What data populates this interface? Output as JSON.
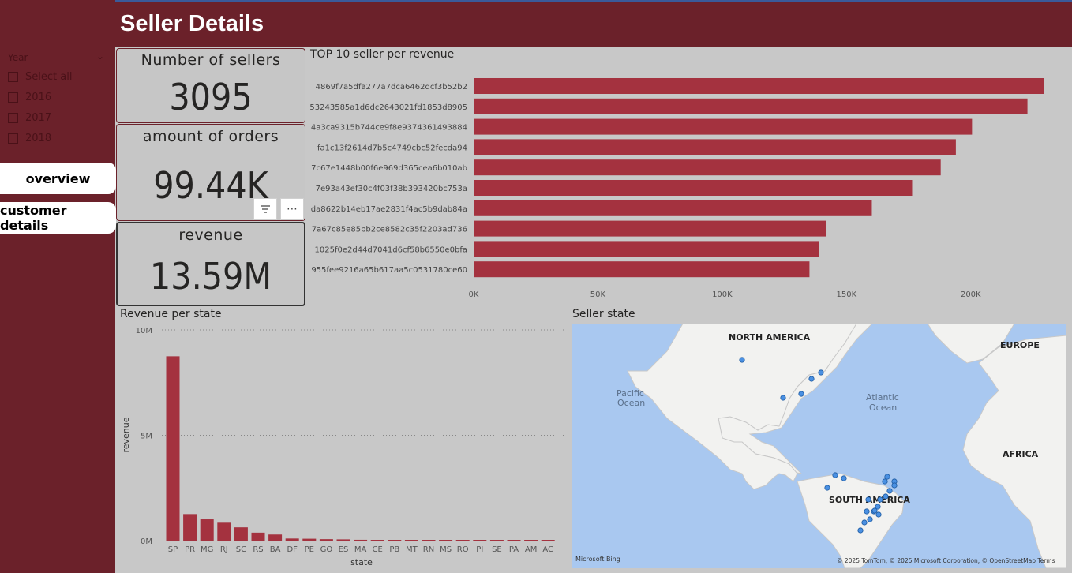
{
  "header": {
    "title": "Seller Details"
  },
  "slicer": {
    "title": "Year",
    "items": [
      "Select all",
      "2016",
      "2017",
      "2018"
    ]
  },
  "nav": {
    "overview": "overview",
    "customer_details": "customer details"
  },
  "cards": {
    "sellers": {
      "label": "Number of sellers",
      "value": "3095"
    },
    "orders": {
      "label": "amount of orders",
      "value": "99.44K"
    },
    "revenue": {
      "label": "revenue",
      "value": "13.59M"
    }
  },
  "visual_header_icons": [
    "filter-icon",
    "more-options-icon"
  ],
  "colors": {
    "accent": "#6b212a",
    "bar": "#a4323f",
    "canvas": "#c8c8c8",
    "map_dot": "#4a90e2"
  },
  "top_sellers_title": "TOP 10 seller per revenue",
  "state_chart_title": "Revenue per state",
  "map": {
    "title": "Seller state",
    "labels": {
      "north_america": "NORTH AMERICA",
      "south_america": "SOUTH AMERICA",
      "europe": "EUROPE",
      "africa": "AFRICA",
      "pacific": "Pacific",
      "pacific2": "Ocean",
      "atlantic": "Atlantic",
      "atlantic2": "Ocean"
    },
    "attribution": "© 2025 TomTom, © 2025 Microsoft Corporation, © OpenStreetMap  Terms",
    "bing": "Microsoft Bing"
  },
  "chart_data": [
    {
      "type": "bar",
      "orientation": "horizontal",
      "title": "TOP 10 seller per revenue",
      "categories": [
        "4869f7a5dfa277a7dca6462dcf3b52b2",
        "53243585a1d6dc2643021fd1853d8905",
        "4a3ca9315b744ce9f8e9374361493884",
        "fa1c13f2614d7b5c4749cbc52fecda94",
        "7c67e1448b00f6e969d365cea6b010ab",
        "7e93a43ef30c4f03f38b393420bc753a",
        "da8622b14eb17ae2831f4ac5b9dab84a",
        "7a67c85e85bb2ce8582c35f2203ad736",
        "1025f0e2d44d7041d6cf58b6550e0bfa",
        "955fee9216a65b617aa5c0531780ce60"
      ],
      "values": [
        229500,
        222800,
        200500,
        194000,
        187900,
        176400,
        160200,
        141700,
        138900,
        135100
      ],
      "xticks": [
        "0K",
        "50K",
        "100K",
        "150K",
        "200K"
      ],
      "xlim": [
        0,
        235000
      ]
    },
    {
      "type": "bar",
      "title": "Revenue per state",
      "xlabel": "state",
      "ylabel": "revenue",
      "categories": [
        "SP",
        "PR",
        "MG",
        "RJ",
        "SC",
        "RS",
        "BA",
        "DF",
        "PE",
        "GO",
        "ES",
        "MA",
        "CE",
        "PB",
        "MT",
        "RN",
        "MS",
        "RO",
        "PI",
        "SE",
        "PA",
        "AM",
        "AC"
      ],
      "values": [
        8750000,
        1260000,
        1010000,
        850000,
        630000,
        380000,
        290000,
        100000,
        90000,
        70000,
        60000,
        40000,
        30000,
        20000,
        20000,
        20000,
        20000,
        15000,
        10000,
        10000,
        10000,
        5000,
        3000
      ],
      "yticks": [
        "0M",
        "5M",
        "10M"
      ],
      "ylim": [
        0,
        10000000
      ]
    }
  ]
}
